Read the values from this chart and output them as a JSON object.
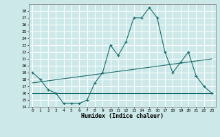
{
  "title": "",
  "xlabel": "Humidex (Indice chaleur)",
  "ylabel": "",
  "background_color": "#cce8e8",
  "grid_color": "#ffffff",
  "line_color": "#1a6b6b",
  "xlim": [
    -0.5,
    23.5
  ],
  "ylim": [
    14,
    29
  ],
  "yticks": [
    14,
    15,
    16,
    17,
    18,
    19,
    20,
    21,
    22,
    23,
    24,
    25,
    26,
    27,
    28
  ],
  "xticks": [
    0,
    1,
    2,
    3,
    4,
    5,
    6,
    7,
    8,
    9,
    10,
    11,
    12,
    13,
    14,
    15,
    16,
    17,
    18,
    19,
    20,
    21,
    22,
    23
  ],
  "series1": {
    "x": [
      0,
      1,
      2,
      3,
      4,
      5,
      6,
      7,
      8,
      9,
      10,
      11,
      12,
      13,
      14,
      15,
      16,
      17,
      18,
      19,
      20,
      21,
      22,
      23
    ],
    "y": [
      19.0,
      18.0,
      16.5,
      16.0,
      14.5,
      14.5,
      14.5,
      15.0,
      17.5,
      19.0,
      23.0,
      21.5,
      23.5,
      27.0,
      27.0,
      28.5,
      27.0,
      22.0,
      19.0,
      20.5,
      22.0,
      18.5,
      17.0,
      16.0
    ]
  },
  "series2": {
    "x": [
      0,
      23
    ],
    "y": [
      17.5,
      21.0
    ]
  },
  "series3": {
    "x": [
      0,
      23
    ],
    "y": [
      16.0,
      16.0
    ]
  },
  "figsize": [
    3.2,
    2.0
  ],
  "dpi": 100
}
